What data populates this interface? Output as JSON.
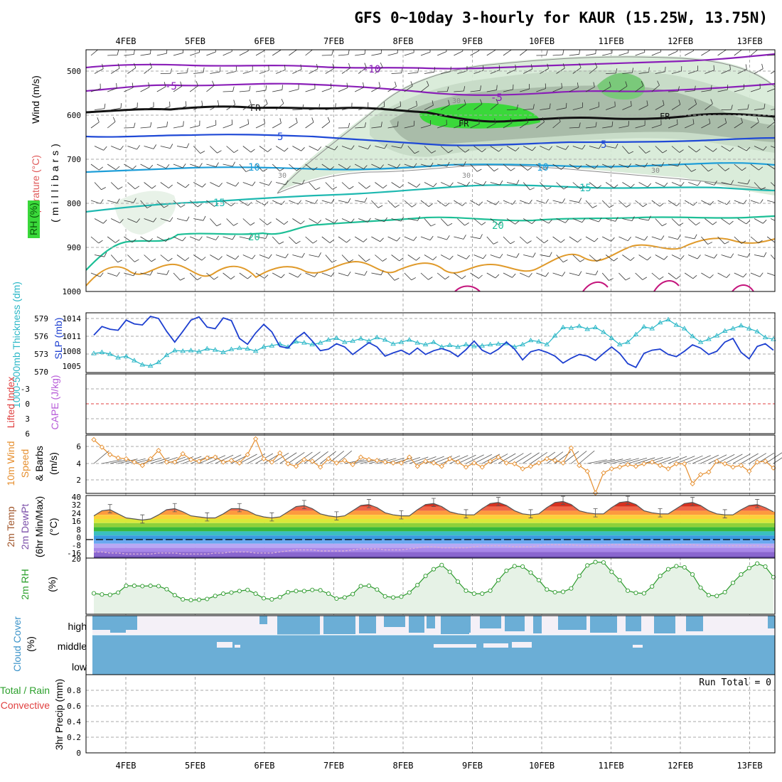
{
  "title": "GFS 0~10day 3-hourly for KAUR (15.25W, 13.75N)",
  "date_ticks": [
    "4FEB",
    "5FEB",
    "6FEB",
    "7FEB",
    "8FEB",
    "9FEB",
    "10FEB",
    "11FEB",
    "12FEB",
    "13FEB"
  ],
  "panels": {
    "upper_air": {
      "labels": [
        "Wind (m/s)",
        "Temperature (°C)",
        "RH (%)",
        "(millibars)"
      ],
      "axis_ticks": [
        "500",
        "600",
        "700",
        "800",
        "900",
        "1000"
      ],
      "temperature_contour_labels": [
        "-10",
        "-5",
        "FR",
        "5",
        "10",
        "15",
        "20"
      ],
      "rh_contour_labels": [
        "30"
      ]
    },
    "thickness_slp": {
      "labels": [
        "1000-500mb Thickness (dm)",
        "SLP (mb)"
      ],
      "thickness_ticks": [
        "570",
        "573",
        "576",
        "579"
      ],
      "slp_ticks": [
        "1005",
        "1008",
        "1011",
        "1014"
      ]
    },
    "cape_li": {
      "labels": [
        "Lifted Index",
        "CAPE (J/kg)"
      ],
      "li_ticks": [
        "-3",
        "0",
        "3",
        "6"
      ]
    },
    "wind10m": {
      "labels": [
        "10m Wind",
        "Speed",
        "& Barbs",
        "(m/s)"
      ],
      "ticks": [
        "2",
        "4",
        "6"
      ]
    },
    "temp2m": {
      "labels": [
        "2m Temp",
        "2m DewPt",
        "(6hr Min/Max)",
        "(°C)"
      ],
      "ticks": [
        "-16",
        "-8",
        "0",
        "8",
        "16",
        "24",
        "32",
        "40"
      ]
    },
    "rh2m": {
      "labels": [
        "2m RH",
        "(%)"
      ],
      "ticks": [
        "20"
      ]
    },
    "cloud": {
      "labels": [
        "Cloud Cover",
        "(%)"
      ],
      "levels": [
        "high",
        "middle",
        "low"
      ]
    },
    "precip": {
      "labels": [
        "Total / Rain",
        "Convective",
        "3hr Precip (mm)"
      ],
      "ticks": [
        "0",
        "0.2",
        "0.4",
        "0.6",
        "0.8"
      ],
      "run_total": "Run Total = 0"
    }
  },
  "colors": {
    "purple": "#8a1fb8",
    "blue": "#1f49d6",
    "lightblue": "#1e9ed8",
    "teal": "#1db8b0",
    "green": "#1dbf96",
    "orange": "#e09a2a",
    "magenta": "#c4157c",
    "rh_fill": "#d6ead6",
    "rh_dark": "#b5c8b5",
    "rh_green": "#1fd81f",
    "thickness": "#2ab7c7",
    "slp": "#1d3fd0",
    "li": "#e04040",
    "cape": "#b75bd8",
    "wind": "#e68f2f",
    "rh2m": "#2c9a2c",
    "cloud": "#6baed6",
    "label_green": "#2ca02c"
  },
  "chart_data": [
    {
      "type": "line",
      "name": "1000-500mb Thickness (dm)",
      "x_unit": "3-hourly steps from 3FEB 12Z",
      "ylim": [
        570,
        580
      ],
      "values": [
        573.1,
        573.3,
        573.0,
        572.4,
        572.6,
        571.9,
        571.2,
        571.0,
        571.6,
        572.8,
        573.6,
        573.5,
        573.6,
        573.4,
        573.9,
        573.7,
        573.3,
        573.8,
        574.0,
        573.9,
        573.5,
        574.2,
        574.4,
        574.7,
        574.2,
        575.1,
        574.9,
        574.6,
        574.9,
        575.4,
        575.7,
        575.0,
        575.2,
        575.6,
        575.2,
        575.8,
        575.4,
        574.7,
        575.0,
        575.4,
        574.9,
        574.6,
        575.0,
        574.2,
        574.5,
        574.2,
        574.6,
        574.3,
        574.4,
        574.6,
        574.7,
        574.8,
        574.2,
        574.6,
        575.3,
        575.1,
        574.6,
        576.1,
        577.5,
        577.4,
        577.7,
        577.2,
        577.5,
        576.7,
        575.7,
        574.6,
        575.0,
        576.3,
        577.6,
        577.3,
        578.3,
        578.8,
        577.9,
        577.3,
        576.0,
        575.0,
        575.5,
        576.1,
        576.9,
        577.3,
        577.8,
        577.3,
        576.8,
        575.8,
        575.5
      ]
    },
    {
      "type": "line",
      "name": "SLP (mb)",
      "ylim": [
        1004,
        1015
      ],
      "values": [
        1010.9,
        1012.5,
        1012.0,
        1011.8,
        1013.7,
        1013.0,
        1012.8,
        1014.4,
        1014.0,
        1011.6,
        1009.6,
        1011.6,
        1013.7,
        1014.3,
        1012.4,
        1012.1,
        1014.1,
        1013.6,
        1010.3,
        1009.2,
        1011.3,
        1012.9,
        1011.5,
        1008.8,
        1008.5,
        1010.3,
        1011.4,
        1009.8,
        1008.0,
        1008.3,
        1009.3,
        1008.7,
        1007.3,
        1008.4,
        1009.5,
        1008.7,
        1007.0,
        1007.6,
        1008.1,
        1007.3,
        1008.5,
        1007.3,
        1008.0,
        1008.4,
        1007.9,
        1006.9,
        1008.2,
        1009.8,
        1008.1,
        1007.4,
        1008.3,
        1009.6,
        1008.3,
        1006.3,
        1007.8,
        1008.2,
        1007.7,
        1007.0,
        1005.7,
        1006.6,
        1007.3,
        1007.0,
        1006.2,
        1007.5,
        1008.7,
        1007.5,
        1005.6,
        1004.9,
        1007.5,
        1008.1,
        1008.3,
        1007.3,
        1006.9,
        1007.9,
        1009.1,
        1008.5,
        1007.3,
        1007.9,
        1009.6,
        1010.3,
        1007.7,
        1006.5,
        1008.8,
        1009.3,
        1008.1
      ]
    },
    {
      "type": "line",
      "name": "10m Wind Speed (m/s)",
      "ylim": [
        0,
        7
      ],
      "values": [
        6.8,
        5.9,
        5.0,
        4.6,
        4.5,
        4.1,
        3.7,
        4.5,
        5.5,
        4.1,
        4.1,
        5.1,
        4.4,
        4.2,
        4.6,
        4.7,
        4.1,
        4.3,
        4.0,
        5.0,
        6.9,
        4.5,
        4.1,
        5.2,
        3.9,
        3.6,
        4.4,
        4.2,
        3.5,
        4.5,
        4.0,
        4.3,
        3.8,
        4.7,
        4.4,
        4.3,
        4.1,
        4.0,
        4.0,
        4.7,
        3.6,
        4.2,
        4.0,
        3.6,
        4.5,
        4.1,
        3.5,
        4.0,
        3.5,
        4.2,
        4.7,
        4.0,
        3.9,
        3.3,
        3.6,
        4.0,
        4.5,
        4.3,
        4.0,
        5.8,
        3.7,
        3.0,
        0.4,
        2.8,
        3.3,
        3.5,
        3.8,
        3.6,
        3.9,
        4.1,
        3.7,
        3.3,
        3.9,
        3.9,
        1.5,
        2.6,
        2.9,
        4.2,
        3.9,
        3.5,
        3.7,
        3.0,
        4.1,
        4.2,
        3.4
      ]
    },
    {
      "type": "area",
      "name": "2m Temp (°C)",
      "ylim": [
        -18,
        42
      ],
      "values": [
        23,
        28,
        29,
        25,
        21,
        20,
        19,
        20,
        24,
        29,
        30,
        27,
        23,
        22,
        21,
        21,
        25,
        30,
        30,
        28,
        24,
        22,
        21,
        22,
        27,
        32,
        33,
        30,
        25,
        23,
        22,
        23,
        28,
        33,
        34,
        31,
        26,
        24,
        23,
        23,
        29,
        34,
        35,
        32,
        27,
        25,
        24,
        24,
        30,
        35,
        36,
        33,
        28,
        25,
        24,
        25,
        31,
        36,
        37,
        34,
        28,
        26,
        25,
        25,
        31,
        36,
        37,
        34,
        28,
        26,
        25,
        25,
        30,
        35,
        36,
        33,
        28,
        25,
        24,
        24,
        29,
        33,
        34,
        31,
        27
      ]
    },
    {
      "type": "line",
      "name": "2m DewPt (°C)",
      "values": [
        -12,
        -12,
        -13,
        -13,
        -14,
        -14,
        -14,
        -14,
        -13,
        -13,
        -13,
        -14,
        -14,
        -14,
        -14,
        -13,
        -13,
        -12,
        -12,
        -12,
        -13,
        -13,
        -13,
        -12,
        -11,
        -10,
        -10,
        -10,
        -11,
        -11,
        -11,
        -11,
        -10,
        -9,
        -9,
        -9,
        -10,
        -10,
        -10,
        -9,
        -8,
        -7,
        -7,
        -8,
        -8,
        -8,
        -8,
        -7,
        -6,
        -6,
        -6,
        -6,
        -7,
        -7,
        -7,
        -6,
        -5,
        -5,
        -5,
        -5,
        -6,
        -6,
        -6,
        -6,
        -5,
        -5,
        -5,
        -5,
        -6,
        -6,
        -6,
        -6,
        -5,
        -5,
        -5,
        -6,
        -6,
        -6,
        -6,
        -6,
        -6,
        -6,
        -6,
        -7,
        -7
      ]
    },
    {
      "type": "line",
      "name": "2m RH (%)",
      "ylim": [
        5,
        21
      ],
      "values": [
        11.4,
        11.1,
        11.0,
        11.6,
        13.4,
        13.4,
        13.3,
        13.4,
        13.3,
        12.5,
        10.9,
        9.8,
        9.6,
        9.7,
        9.9,
        10.7,
        11.3,
        11.6,
        12.0,
        12.3,
        11.3,
        10.1,
        9.8,
        10.4,
        11.7,
        12.0,
        12.0,
        12.3,
        12.2,
        11.3,
        10.0,
        10.3,
        11.2,
        13.3,
        13.4,
        12.4,
        10.6,
        10.3,
        10.5,
        11.6,
        13.6,
        16.0,
        17.8,
        18.9,
        17.1,
        14.5,
        12.1,
        11.3,
        11.3,
        12.1,
        14.9,
        17.4,
        18.6,
        18.5,
        16.9,
        14.9,
        12.4,
        11.7,
        11.8,
        12.7,
        16.0,
        18.8,
        19.7,
        19.6,
        17.1,
        14.9,
        12.1,
        11.5,
        11.4,
        13.2,
        16.0,
        17.8,
        18.6,
        18.3,
        16.4,
        12.9,
        10.9,
        10.7,
        11.7,
        14.2,
        16.4,
        18.1,
        19.3,
        18.5,
        15.7
      ]
    },
    {
      "type": "bar",
      "name": "3hr Precip (mm)",
      "ylim": [
        0,
        0.9
      ],
      "values": [],
      "run_total": 0
    }
  ]
}
